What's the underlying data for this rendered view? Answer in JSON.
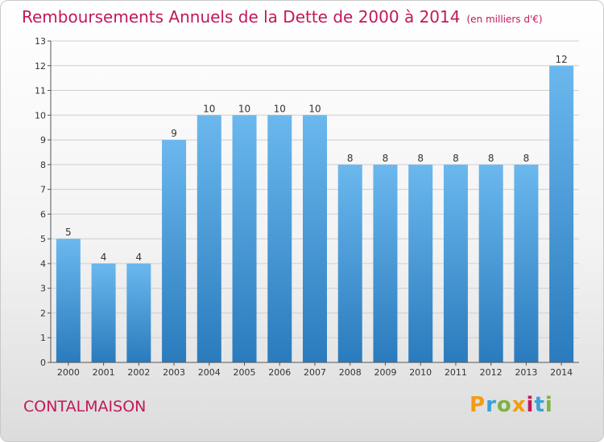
{
  "header": {
    "title": "Remboursements Annuels de la Dette de 2000 à 2014",
    "unit": "(en milliers d'€)"
  },
  "footer": {
    "commune": "CONTALMAISON",
    "logo_text": "Proxiti",
    "logo_colors": [
      "#f39c12",
      "#3aa0d8",
      "#7cb342",
      "#f39c12",
      "#c2185b",
      "#3aa0d8",
      "#7cb342"
    ]
  },
  "colors": {
    "bar_top": "#6bb8ee",
    "bar_bottom": "#2a7bbd",
    "title": "#c2185b",
    "grid": "#cfcfcf"
  },
  "chart_data": {
    "type": "bar",
    "title": "Remboursements Annuels de la Dette de 2000 à 2014",
    "xlabel": "",
    "ylabel": "",
    "categories": [
      "2000",
      "2001",
      "2002",
      "2003",
      "2004",
      "2005",
      "2006",
      "2007",
      "2008",
      "2009",
      "2010",
      "2011",
      "2012",
      "2013",
      "2014"
    ],
    "values": [
      5,
      4,
      4,
      9,
      10,
      10,
      10,
      10,
      8,
      8,
      8,
      8,
      8,
      8,
      12
    ],
    "data_labels": [
      "5",
      "4",
      "4",
      "9",
      "10",
      "10",
      "10",
      "10",
      "8",
      "8",
      "8",
      "8",
      "8",
      "8",
      "12"
    ],
    "ylim": [
      0,
      13
    ],
    "yticks": [
      0,
      1,
      2,
      3,
      4,
      5,
      6,
      7,
      8,
      9,
      10,
      11,
      12,
      13
    ],
    "grid": true
  }
}
